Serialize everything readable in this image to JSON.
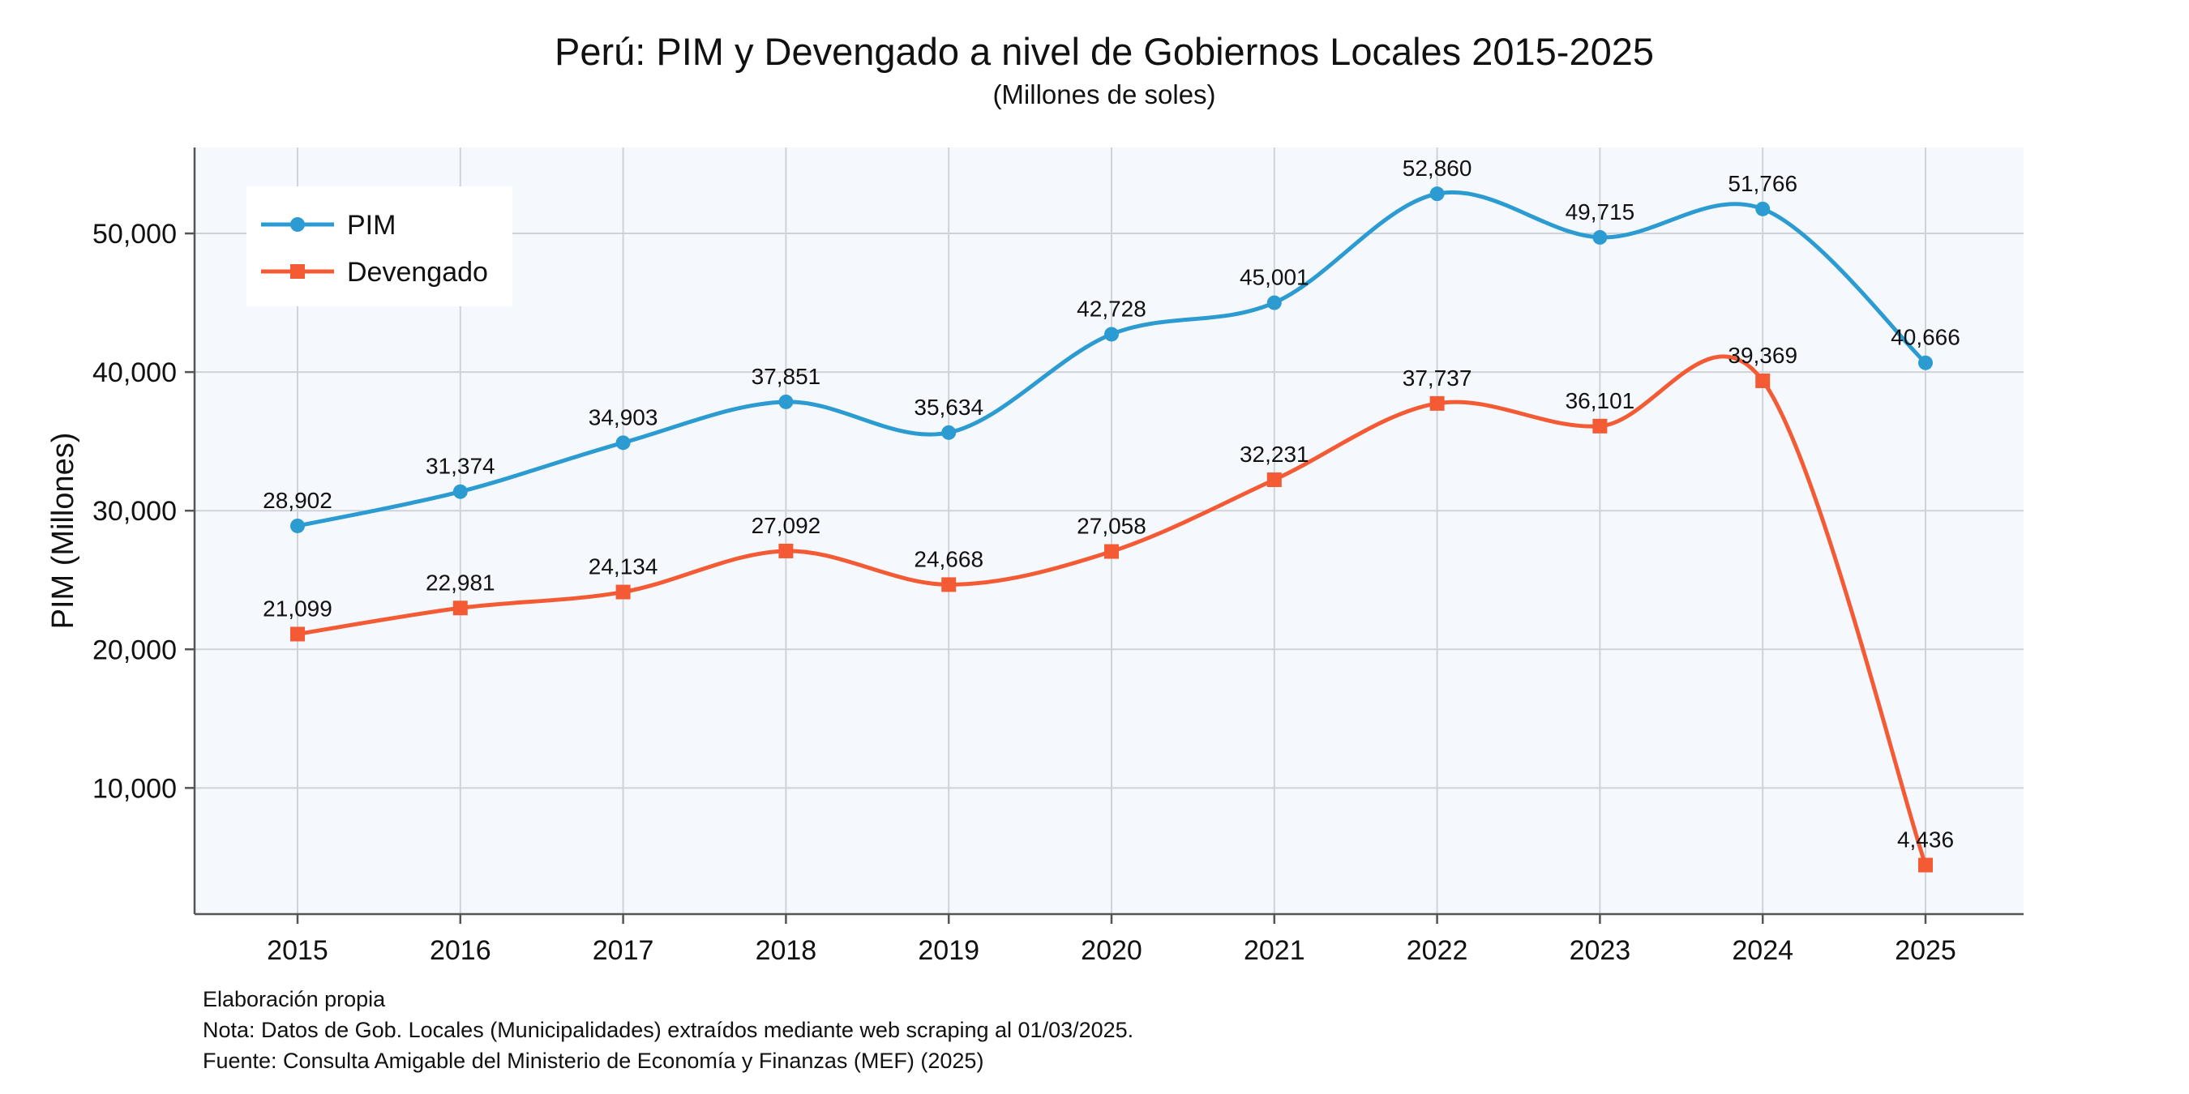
{
  "chart_data": {
    "type": "line",
    "title": "Perú: PIM y Devengado a nivel de Gobiernos Locales 2015-2025",
    "subtitle": "(Millones de soles)",
    "ylabel": "PIM (Millones)",
    "xlabel": "",
    "x": [
      "2015",
      "2016",
      "2017",
      "2018",
      "2019",
      "2020",
      "2021",
      "2022",
      "2023",
      "2024",
      "2025"
    ],
    "ylim": [
      900,
      56200
    ],
    "yticks": [
      10000,
      20000,
      30000,
      40000,
      50000
    ],
    "ytick_labels": [
      "10,000",
      "20,000",
      "30,000",
      "40,000",
      "50,000"
    ],
    "grid": true,
    "legend_position": "top-left",
    "series": [
      {
        "name": "PIM",
        "color": "#2b9bd2",
        "marker": "circle",
        "values": [
          28902,
          31374,
          34903,
          37851,
          35634,
          42728,
          45001,
          52860,
          49715,
          51766,
          40666
        ],
        "labels": [
          "28,902",
          "31,374",
          "34,903",
          "37,851",
          "35,634",
          "42,728",
          "45,001",
          "52,860",
          "49,715",
          "51,766",
          "40,666"
        ]
      },
      {
        "name": "Devengado",
        "color": "#f45b35",
        "marker": "square",
        "values": [
          21099,
          22981,
          24134,
          27092,
          24668,
          27058,
          32231,
          37737,
          36101,
          39369,
          4436
        ],
        "labels": [
          "21,099",
          "22,981",
          "24,134",
          "27,092",
          "24,668",
          "27,058",
          "32,231",
          "37,737",
          "36,101",
          "39,369",
          "4,436"
        ]
      }
    ]
  },
  "footnotes": [
    "Elaboración propia",
    "Nota: Datos de Gob. Locales (Municipalidades) extraídos mediante web scraping al 01/03/2025.",
    "Fuente: Consulta Amigable del Ministerio de Economía y Finanzas (MEF) (2025)"
  ],
  "colors": {
    "plot_background": "#f5f9fd",
    "grid": "#cfd3d8"
  }
}
